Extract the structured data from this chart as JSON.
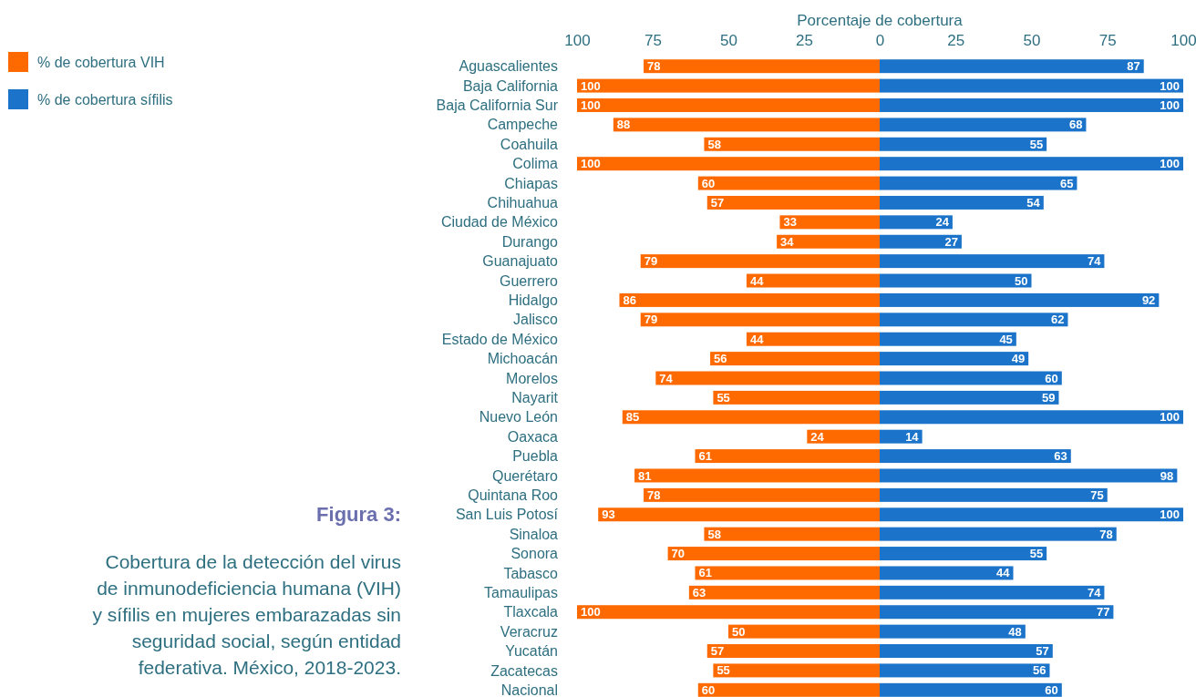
{
  "chart_data": [
    {
      "type": "bar",
      "orientation": "horizontal",
      "title": "Figura 3:",
      "subtitle": "Cobertura de la detección del virus de inmunodeficiencia humana (VIH) y sífilis en mujeres embarazadas sin seguridad social, según entidad federativa. México, 2018-2023.",
      "xlabel": "Porcentaje de cobertura",
      "legend": "left",
      "categories": [
        "Aguascalientes",
        "Baja California",
        "Baja California Sur",
        "Campeche",
        "Coahuila",
        "Colima",
        "Chiapas",
        "Chihuahua",
        "Ciudad de México",
        "Durango",
        "Guanajuato",
        "Guerrero",
        "Hidalgo",
        "Jalisco",
        "Estado de México",
        "Michoacán",
        "Morelos",
        "Nayarit",
        "Nuevo León",
        "Oaxaca",
        "Puebla",
        "Querétaro",
        "Quintana Roo",
        "San Luis Potosí",
        "Sinaloa",
        "Sonora",
        "Tabasco",
        "Tamaulipas",
        "Tlaxcala",
        "Veracruz",
        "Yucatán",
        "Zacatecas",
        "Nacional"
      ],
      "xlim": [
        100,
        0
      ],
      "xticks": [
        100,
        75,
        50,
        25,
        0
      ],
      "data_labels": true,
      "series": [
        {
          "name": "% de cobertura VIH",
          "color": "#ff6a00",
          "values": [
            78,
            100,
            100,
            88,
            58,
            100,
            60,
            57,
            33,
            34,
            79,
            44,
            86,
            79,
            44,
            56,
            74,
            55,
            85,
            24,
            61,
            81,
            78,
            93,
            58,
            70,
            61,
            63,
            100,
            50,
            57,
            55,
            60
          ]
        }
      ]
    },
    {
      "type": "bar",
      "orientation": "horizontal",
      "legend": "left",
      "tick_labels": "x",
      "categories": [
        "Aguascalientes",
        "Baja California",
        "Baja California Sur",
        "Campeche",
        "Coahuila",
        "Colima",
        "Chiapas",
        "Chihuahua",
        "Ciudad de México",
        "Durango",
        "Guanajuato",
        "Guerrero",
        "Hidalgo",
        "Jalisco",
        "Estado de México",
        "Michoacán",
        "Morelos",
        "Nayarit",
        "Nuevo León",
        "Oaxaca",
        "Puebla",
        "Querétaro",
        "Quintana Roo",
        "San Luis Potosí",
        "Sinaloa",
        "Sonora",
        "Tabasco",
        "Tamaulipas",
        "Tlaxcala",
        "Veracruz",
        "Yucatán",
        "Zacatecas",
        "Nacional"
      ],
      "xlim": [
        0,
        100
      ],
      "xticks": [
        25,
        50,
        75,
        100
      ],
      "data_labels": true,
      "series": [
        {
          "name": "% de cobertura sífilis",
          "color": "#1b74c9",
          "values": [
            87,
            100,
            100,
            68,
            55,
            100,
            65,
            54,
            24,
            27,
            74,
            50,
            92,
            62,
            45,
            49,
            60,
            59,
            100,
            14,
            63,
            98,
            75,
            100,
            78,
            55,
            44,
            74,
            77,
            48,
            57,
            56,
            60
          ]
        }
      ]
    }
  ]
}
